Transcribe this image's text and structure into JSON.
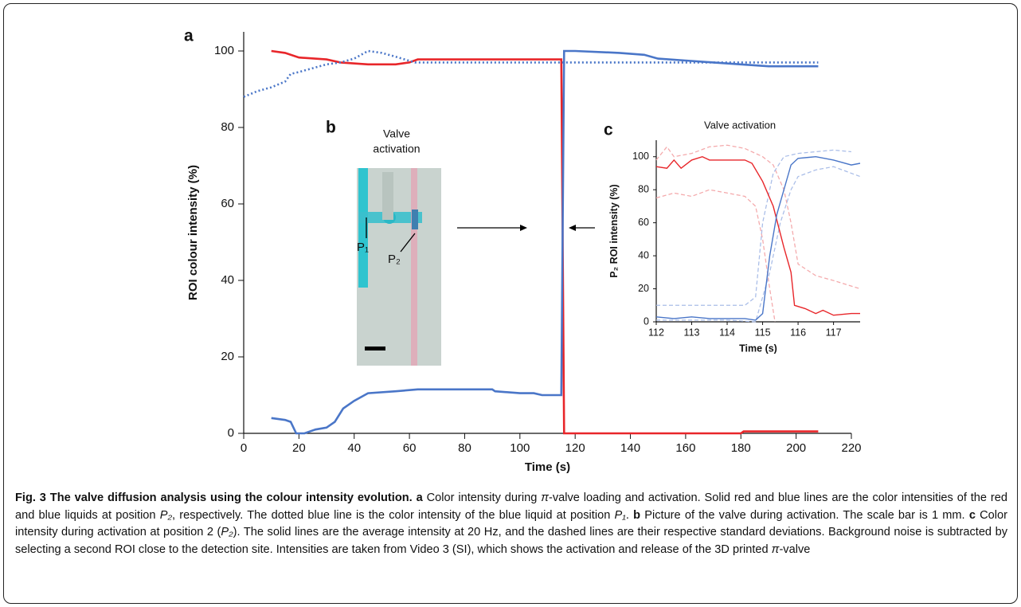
{
  "chart_data": [
    {
      "type": "line",
      "panel": "a",
      "xlabel": "Time (s)",
      "ylabel": "ROI colour intensity (%)",
      "xlim": [
        0,
        220
      ],
      "ylim": [
        0,
        105
      ],
      "xticks": [
        0,
        20,
        40,
        60,
        80,
        100,
        120,
        140,
        160,
        180,
        200,
        220
      ],
      "yticks": [
        0,
        20,
        40,
        60,
        80,
        100
      ],
      "series": [
        {
          "color": "#e8262a",
          "linestyle": "solid",
          "x": [
            10,
            15,
            20,
            30,
            35,
            45,
            55,
            60,
            63,
            115,
            116,
            180,
            181,
            208
          ],
          "values": [
            100,
            99.5,
            98.3,
            97.8,
            97,
            96.5,
            96.5,
            97,
            97.8,
            97.8,
            0,
            0,
            0.5,
            0.5
          ]
        },
        {
          "color": "#4a76c8",
          "linestyle": "solid",
          "x": [
            10,
            15,
            17,
            19,
            22,
            26,
            30,
            33,
            36,
            40,
            45,
            55,
            63,
            90,
            91,
            100,
            105,
            108,
            115,
            116,
            120,
            136,
            145,
            150,
            160,
            170,
            180,
            190,
            208
          ],
          "values": [
            4,
            3.5,
            3,
            0,
            0,
            1,
            1.5,
            3,
            6.5,
            8.5,
            10.5,
            11,
            11.5,
            11.5,
            11,
            10.5,
            10.5,
            10,
            10,
            100,
            100,
            99.5,
            99,
            98,
            97.5,
            97,
            96.5,
            96,
            96
          ]
        },
        {
          "color": "#4a76c8",
          "linestyle": "dotted",
          "x": [
            0,
            5,
            10,
            15,
            17,
            20,
            25,
            30,
            35,
            40,
            45,
            50,
            55,
            62,
            115,
            208
          ],
          "values": [
            88,
            89.5,
            90.5,
            92,
            94,
            94.5,
            95.5,
            96.5,
            97,
            98,
            100,
            99.5,
            98.5,
            97,
            97,
            97
          ]
        }
      ]
    },
    {
      "type": "line",
      "panel": "c",
      "title": "Valve activation",
      "xlabel": "Time (s)",
      "ylabel": "P₂ ROI intensity (%)",
      "xlim": [
        112,
        117.75
      ],
      "ylim": [
        0,
        110
      ],
      "xticks": [
        112,
        113,
        114,
        115,
        116,
        117
      ],
      "yticks": [
        0,
        20,
        40,
        60,
        80,
        100
      ],
      "series": [
        {
          "color": "#f4a9ab",
          "linestyle": "dashed",
          "x": [
            112,
            112.3,
            112.5,
            113,
            113.5,
            114,
            114.5,
            115,
            115.3,
            115.6,
            115.8,
            116,
            116.5,
            117,
            117.75
          ],
          "values": [
            98,
            106,
            100,
            102,
            106,
            107,
            105,
            100,
            95,
            80,
            60,
            35,
            28,
            25,
            20
          ]
        },
        {
          "color": "#f4a9ab",
          "linestyle": "dashed",
          "x": [
            112,
            112.5,
            113,
            113.5,
            114,
            114.5,
            114.8,
            115,
            115.2,
            115.35
          ],
          "values": [
            75,
            78,
            76,
            80,
            78,
            76,
            70,
            50,
            20,
            0
          ]
        },
        {
          "color": "#a9bde8",
          "linestyle": "dashed",
          "x": [
            112,
            113,
            114,
            114.5,
            114.8,
            115,
            115.3,
            115.6,
            116,
            117,
            117.5
          ],
          "values": [
            10,
            10,
            10,
            10,
            15,
            60,
            90,
            100,
            102,
            104,
            103
          ]
        },
        {
          "color": "#a9bde8",
          "linestyle": "dashed",
          "x": [
            112,
            114,
            114.8,
            115.2,
            115.5,
            115.8,
            116,
            116.5,
            117,
            117.75
          ],
          "values": [
            1,
            1,
            0,
            30,
            60,
            80,
            88,
            92,
            94,
            88
          ]
        },
        {
          "color": "#e8262a",
          "linestyle": "solid",
          "x": [
            112,
            112.3,
            112.5,
            112.7,
            113,
            113.3,
            113.5,
            114,
            114.5,
            114.7,
            115,
            115.3,
            115.6,
            115.8,
            115.9,
            116.2,
            116.5,
            116.7,
            117,
            117.5,
            117.75
          ],
          "values": [
            94,
            93,
            98,
            93,
            98,
            100,
            98,
            98,
            98,
            96,
            85,
            70,
            45,
            30,
            10,
            8,
            5,
            7,
            4,
            5,
            5
          ]
        },
        {
          "color": "#4a76c8",
          "linestyle": "solid",
          "x": [
            112,
            112.5,
            113,
            113.5,
            114,
            114.5,
            114.8,
            115,
            115.2,
            115.4,
            115.6,
            115.8,
            116,
            116.5,
            117,
            117.5,
            117.75
          ],
          "values": [
            3,
            2,
            3,
            2,
            2,
            2,
            1,
            5,
            40,
            65,
            80,
            95,
            99,
            100,
            98,
            95,
            96
          ]
        }
      ]
    }
  ],
  "inset_b": {
    "panel": "b",
    "title_lines": [
      "Valve",
      "activation"
    ],
    "p1": "P₁",
    "p2": "P₂"
  },
  "caption": {
    "segments": [
      {
        "text": "Fig. 3 The valve diffusion analysis using the colour intensity evolution. a",
        "style": "bold"
      },
      {
        "text": " Color intensity during ",
        "style": "normal"
      },
      {
        "text": "π",
        "style": "italic"
      },
      {
        "text": "-valve loading and activation. Solid red and blue lines are the color intensities of the red and blue liquids at position ",
        "style": "normal"
      },
      {
        "text": "P₂",
        "style": "italic"
      },
      {
        "text": ", respectively. The dotted blue line is the color intensity of the blue liquid at position ",
        "style": "normal"
      },
      {
        "text": "P₁",
        "style": "italic"
      },
      {
        "text": ". ",
        "style": "normal"
      },
      {
        "text": "b",
        "style": "bold"
      },
      {
        "text": " Picture of the valve during activation. The scale bar is 1 mm. ",
        "style": "normal"
      },
      {
        "text": "c",
        "style": "bold"
      },
      {
        "text": " Color intensity during activation at position 2 (",
        "style": "normal"
      },
      {
        "text": "P₂",
        "style": "italic"
      },
      {
        "text": "). The solid lines are the average intensity at 20 Hz, and the dashed lines are their respective standard deviations. Background noise is subtracted by selecting a second ROI close to the detection site. Intensities are taken from Video 3 (SI), which shows the activation and release of the 3D printed ",
        "style": "normal"
      },
      {
        "text": "π",
        "style": "italic"
      },
      {
        "text": "-valve",
        "style": "normal"
      }
    ]
  }
}
